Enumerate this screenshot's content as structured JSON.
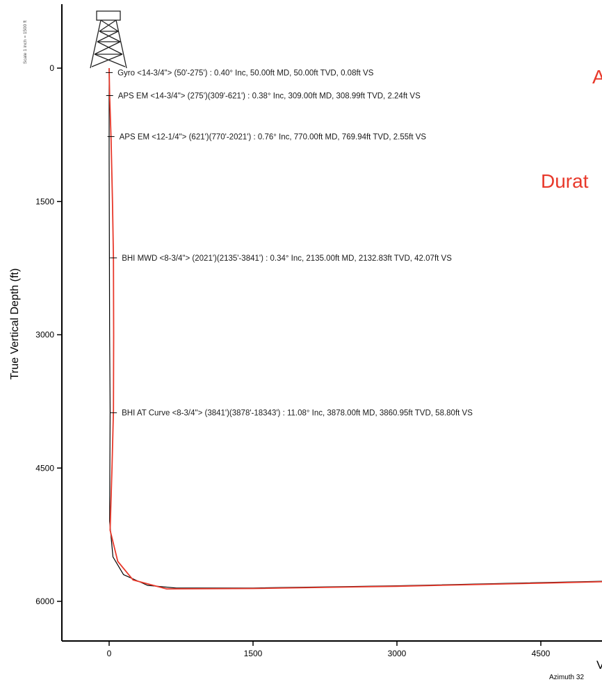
{
  "scale_note": "Scale 1 inch = 1500 ft",
  "red_title_partial": "A",
  "red_subtitle_partial": "Durat",
  "xlabel_partial": "V",
  "azimuth_partial": "Azimuth 32",
  "colors": {
    "actual": "#e8392b",
    "plan": "#000000",
    "axis": "#000000"
  },
  "chart_data": {
    "type": "line",
    "ylabel": "True Vertical Depth (ft)",
    "xlabel": "",
    "x_ticks": [
      0,
      1500,
      3000,
      4500
    ],
    "y_ticks": [
      0,
      1500,
      3000,
      4500,
      6000
    ],
    "xlim": [
      -550,
      5300
    ],
    "ylim": [
      6430,
      -650
    ],
    "y_inverted": true,
    "grid": false,
    "series": [
      {
        "values": [
          {
            "x": 0,
            "y": 0
          },
          {
            "x": 5,
            "y": 300
          },
          {
            "x": 20,
            "y": 800
          },
          {
            "x": 35,
            "y": 1500
          },
          {
            "x": 45,
            "y": 2135
          },
          {
            "x": 47,
            "y": 3000
          },
          {
            "x": 45,
            "y": 3860
          },
          {
            "x": 30,
            "y": 4500
          },
          {
            "x": 10,
            "y": 5200
          },
          {
            "x": 90,
            "y": 5550
          },
          {
            "x": 250,
            "y": 5760
          },
          {
            "x": 600,
            "y": 5860
          },
          {
            "x": 1500,
            "y": 5855
          },
          {
            "x": 3000,
            "y": 5830
          },
          {
            "x": 4500,
            "y": 5795
          },
          {
            "x": 5300,
            "y": 5775
          }
        ]
      },
      {
        "values": [
          {
            "x": 0,
            "y": 0
          },
          {
            "x": 0,
            "y": 1000
          },
          {
            "x": 5,
            "y": 3000
          },
          {
            "x": 10,
            "y": 3860
          },
          {
            "x": 5,
            "y": 5100
          },
          {
            "x": 40,
            "y": 5500
          },
          {
            "x": 150,
            "y": 5700
          },
          {
            "x": 400,
            "y": 5820
          },
          {
            "x": 700,
            "y": 5850
          },
          {
            "x": 1500,
            "y": 5850
          },
          {
            "x": 3000,
            "y": 5825
          },
          {
            "x": 5300,
            "y": 5770
          }
        ]
      }
    ],
    "annotations": [
      {
        "depth": 50,
        "text": "Gyro <14-3/4\"> (50'-275') : 0.40° Inc, 50.00ft MD, 50.00ft TVD, 0.08ft VS"
      },
      {
        "depth": 309,
        "text": "APS EM <14-3/4\"> (275')(309'-621') : 0.38° Inc, 309.00ft MD, 308.99ft TVD, 2.24ft VS"
      },
      {
        "depth": 770,
        "text": "APS EM <12-1/4\"> (621')(770'-2021') : 0.76° Inc, 770.00ft MD, 769.94ft TVD, 2.55ft VS"
      },
      {
        "depth": 2135,
        "text": "BHI MWD <8-3/4\"> (2021')(2135'-3841') : 0.34° Inc, 2135.00ft MD, 2132.83ft TVD, 42.07ft VS"
      },
      {
        "depth": 3878,
        "text": "BHI AT Curve <8-3/4\"> (3841')(3878'-18343') : 11.08° Inc, 3878.00ft MD, 3860.95ft TVD, 58.80ft VS"
      }
    ]
  }
}
